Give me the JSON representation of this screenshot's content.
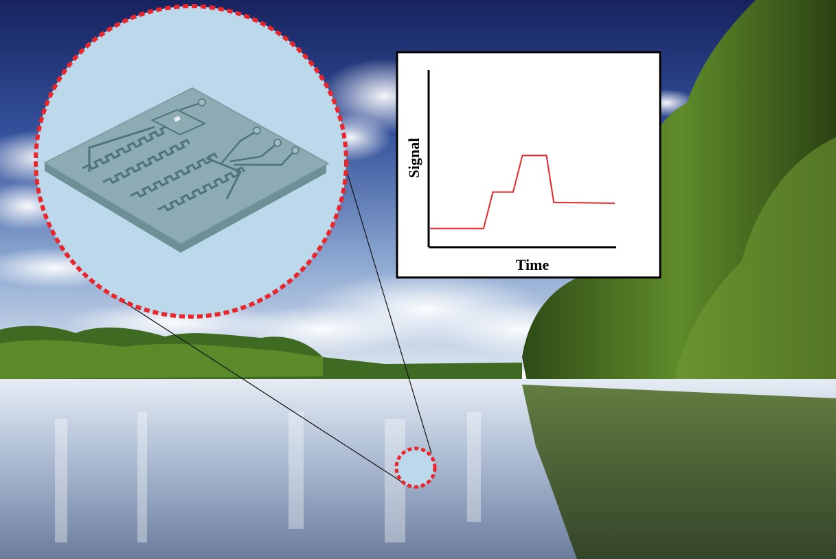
{
  "chart_data": {
    "type": "line",
    "xlabel": "Time",
    "ylabel": "Signal",
    "x": [
      0,
      0.29,
      0.34,
      0.45,
      0.5,
      0.63,
      0.67,
      1.0
    ],
    "series": [
      {
        "values": [
          0.1,
          0.1,
          0.31,
          0.31,
          0.52,
          0.52,
          0.25,
          0.245
        ]
      }
    ],
    "xlim": [
      0,
      1
    ],
    "ylim": [
      0,
      1
    ],
    "grid": false,
    "line_color": "#e8262b"
  },
  "colors": {
    "sky_top": "#1d2a6e",
    "sky_mid": "#3e5fa8",
    "water": "#c7d2e2",
    "trees": "#4e7a24",
    "magnifier_fill": "#bcd9ec",
    "magnifier_border": "#e8262b",
    "device": "#86a5ad",
    "electrode": "#4f7478"
  }
}
